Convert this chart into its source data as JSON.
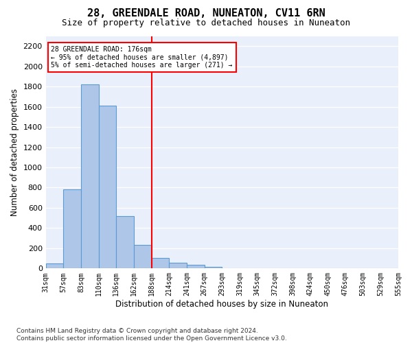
{
  "title": "28, GREENDALE ROAD, NUNEATON, CV11 6RN",
  "subtitle": "Size of property relative to detached houses in Nuneaton",
  "xlabel": "Distribution of detached houses by size in Nuneaton",
  "ylabel": "Number of detached properties",
  "bar_values": [
    50,
    780,
    1820,
    1610,
    520,
    235,
    105,
    55,
    35,
    15,
    0,
    0,
    0,
    0,
    0,
    0,
    0,
    0,
    0,
    0
  ],
  "x_labels": [
    "31sqm",
    "57sqm",
    "83sqm",
    "110sqm",
    "136sqm",
    "162sqm",
    "188sqm",
    "214sqm",
    "241sqm",
    "267sqm",
    "293sqm",
    "319sqm",
    "345sqm",
    "372sqm",
    "398sqm",
    "424sqm",
    "450sqm",
    "476sqm",
    "503sqm",
    "529sqm",
    "555sqm"
  ],
  "bar_color": "#aec6e8",
  "bar_edge_color": "#5b9bd5",
  "vline_x": 6.0,
  "vline_color": "red",
  "annotation_text": "28 GREENDALE ROAD: 176sqm\n← 95% of detached houses are smaller (4,897)\n5% of semi-detached houses are larger (271) →",
  "annotation_box_color": "white",
  "annotation_box_edge": "red",
  "ylim": [
    0,
    2300
  ],
  "yticks": [
    0,
    200,
    400,
    600,
    800,
    1000,
    1200,
    1400,
    1600,
    1800,
    2000,
    2200
  ],
  "bg_color": "#eaf0fb",
  "footer": "Contains HM Land Registry data © Crown copyright and database right 2024.\nContains public sector information licensed under the Open Government Licence v3.0.",
  "title_fontsize": 11,
  "subtitle_fontsize": 9,
  "xlabel_fontsize": 8.5,
  "ylabel_fontsize": 8.5,
  "footer_fontsize": 6.5
}
